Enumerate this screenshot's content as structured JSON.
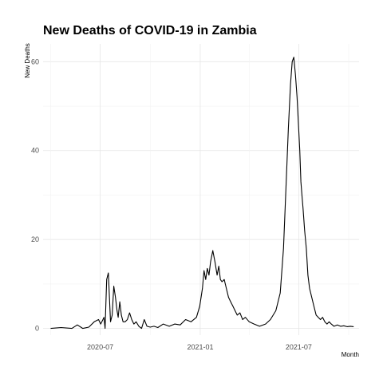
{
  "chart_data": {
    "type": "line",
    "title": "New Deaths of COVID-19 in Zambia",
    "xlabel": "Month",
    "ylabel": "New Deaths",
    "x_ticks": [
      "2020-07",
      "2021-01",
      "2021-07"
    ],
    "y_ticks": [
      "0",
      "20",
      "40",
      "60"
    ],
    "xlim": [
      "2020-03-18",
      "2021-10-20"
    ],
    "ylim": [
      -1.5,
      64
    ],
    "grid": true,
    "series": [
      {
        "x": [
          "2020-04-01",
          "2020-04-20",
          "2020-05-10",
          "2020-05-20",
          "2020-05-30",
          "2020-06-10",
          "2020-06-20",
          "2020-06-28",
          "2020-07-02",
          "2020-07-06",
          "2020-07-08",
          "2020-07-10",
          "2020-07-13",
          "2020-07-16",
          "2020-07-20",
          "2020-07-23",
          "2020-07-26",
          "2020-07-29",
          "2020-08-01",
          "2020-08-03",
          "2020-08-06",
          "2020-08-09",
          "2020-08-12",
          "2020-08-16",
          "2020-08-20",
          "2020-08-24",
          "2020-08-28",
          "2020-09-01",
          "2020-09-05",
          "2020-09-10",
          "2020-09-15",
          "2020-09-20",
          "2020-09-25",
          "2020-10-01",
          "2020-10-08",
          "2020-10-15",
          "2020-10-25",
          "2020-11-05",
          "2020-11-15",
          "2020-11-25",
          "2020-12-05",
          "2020-12-15",
          "2020-12-25",
          "2020-12-31",
          "2021-01-05",
          "2021-01-08",
          "2021-01-11",
          "2021-01-14",
          "2021-01-17",
          "2021-01-20",
          "2021-01-24",
          "2021-01-28",
          "2021-02-01",
          "2021-02-04",
          "2021-02-07",
          "2021-02-10",
          "2021-02-14",
          "2021-02-18",
          "2021-02-22",
          "2021-02-26",
          "2021-03-02",
          "2021-03-06",
          "2021-03-10",
          "2021-03-15",
          "2021-03-20",
          "2021-03-25",
          "2021-04-01",
          "2021-04-10",
          "2021-04-20",
          "2021-05-01",
          "2021-05-10",
          "2021-05-20",
          "2021-05-28",
          "2021-06-03",
          "2021-06-08",
          "2021-06-12",
          "2021-06-16",
          "2021-06-19",
          "2021-06-22",
          "2021-06-25",
          "2021-06-28",
          "2021-07-01",
          "2021-07-03",
          "2021-07-05",
          "2021-07-07",
          "2021-07-09",
          "2021-07-12",
          "2021-07-15",
          "2021-07-18",
          "2021-07-21",
          "2021-07-25",
          "2021-07-29",
          "2021-08-02",
          "2021-08-06",
          "2021-08-10",
          "2021-08-14",
          "2021-08-18",
          "2021-08-22",
          "2021-08-26",
          "2021-08-30",
          "2021-09-04",
          "2021-09-10",
          "2021-09-16",
          "2021-09-22",
          "2021-09-28",
          "2021-10-04",
          "2021-10-10"
        ],
        "y": [
          0,
          0.2,
          0,
          0.8,
          0,
          0.3,
          1.5,
          2,
          1,
          2,
          2.5,
          0,
          11,
          12.5,
          1.5,
          3,
          9.5,
          7,
          4,
          2.5,
          6,
          3,
          1.5,
          1.5,
          2,
          3.5,
          2,
          1,
          1.5,
          0.5,
          0,
          2,
          0.5,
          0.3,
          0.5,
          0.2,
          1,
          0.5,
          1,
          0.8,
          2,
          1.5,
          2.5,
          5,
          9,
          13,
          11,
          13.5,
          12,
          15,
          17.5,
          15,
          12,
          14,
          11,
          10.5,
          11,
          9,
          7,
          6,
          5,
          4,
          3,
          3.5,
          2,
          2.5,
          1.5,
          1,
          0.5,
          1,
          2,
          4,
          8,
          18,
          33,
          45,
          55,
          60,
          61,
          57,
          52,
          45,
          40,
          33,
          30,
          27,
          22,
          18,
          12,
          9,
          7,
          5,
          3,
          2.5,
          2,
          2.5,
          1.5,
          1,
          1.5,
          1,
          0.5,
          0.8,
          0.5,
          0.6,
          0.4,
          0.5,
          0.4
        ]
      }
    ]
  }
}
